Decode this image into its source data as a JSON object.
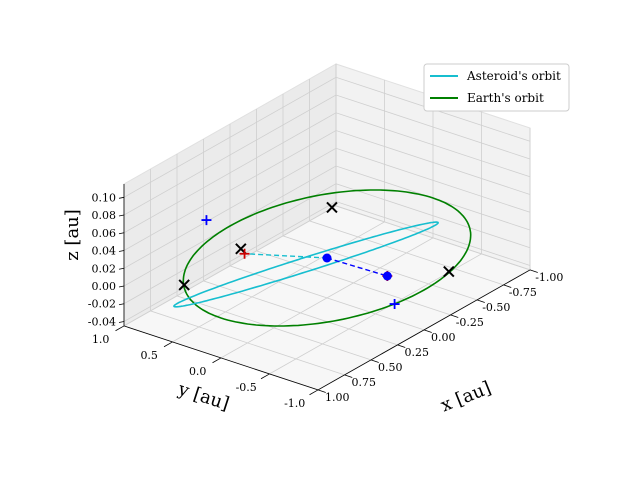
{
  "chart_data": {
    "type": "3d-line",
    "xlabel": "x [au]",
    "ylabel": "y [au]",
    "zlabel": "z [au]",
    "xlim": [
      -1.0,
      1.0
    ],
    "ylim": [
      -1.0,
      1.0
    ],
    "zlim": [
      -0.045,
      0.115
    ],
    "xticks": [
      "-1.00",
      "-0.75",
      "-0.50",
      "-0.25",
      "0.00",
      "0.25",
      "0.50",
      "0.75",
      "1.00"
    ],
    "yticks": [
      "1.0",
      "0.5",
      "0.0",
      "-0.5",
      "-1.0"
    ],
    "zticks": [
      "-0.04",
      "-0.02",
      "0.00",
      "0.02",
      "0.04",
      "0.06",
      "0.08",
      "0.10"
    ],
    "grid": true,
    "legend_placement": "top-right",
    "series": [
      {
        "name": "Asteroid's orbit",
        "color": "#17becf",
        "kind": "ellipse",
        "a": 0.92,
        "e": 0.16,
        "inclination_deg": 6.5,
        "node_deg": 205,
        "peri_deg": 10
      },
      {
        "name": "Earth's orbit",
        "color": "#008000",
        "kind": "circle",
        "radius": 1.0
      }
    ],
    "markers": [
      {
        "type": "x",
        "color": "#000000",
        "points": [
          [
            -0.28,
            -0.95,
            0.0
          ],
          [
            0.78,
            0.62,
            0.0
          ],
          [
            -0.55,
            0.55,
            0.0
          ],
          [
            0.95,
            -0.15,
            0.08
          ]
        ]
      },
      {
        "type": "+",
        "color": "#cc0000",
        "points": [
          [
            -0.02,
            -0.6,
            0.0
          ],
          [
            0.97,
            -0.21,
            0.078
          ]
        ]
      },
      {
        "type": "+",
        "color": "#0000ff",
        "points": [
          [
            1.0,
            0.15,
            0.105
          ],
          [
            0.25,
            -0.97,
            0.0
          ]
        ]
      },
      {
        "type": "dot",
        "color": "#0000ff",
        "points": [
          [
            0.0,
            0.0,
            0.0
          ],
          [
            -0.02,
            -0.6,
            0.0
          ]
        ]
      }
    ],
    "dashed_lines": [
      {
        "color": "#0000ff",
        "points": [
          [
            0.0,
            0.0,
            0.0
          ],
          [
            -0.02,
            -0.6,
            0.0
          ]
        ]
      },
      {
        "color": "#17becf",
        "points": [
          [
            0.0,
            0.0,
            0.0
          ],
          [
            0.97,
            -0.21,
            0.078
          ]
        ]
      }
    ]
  }
}
